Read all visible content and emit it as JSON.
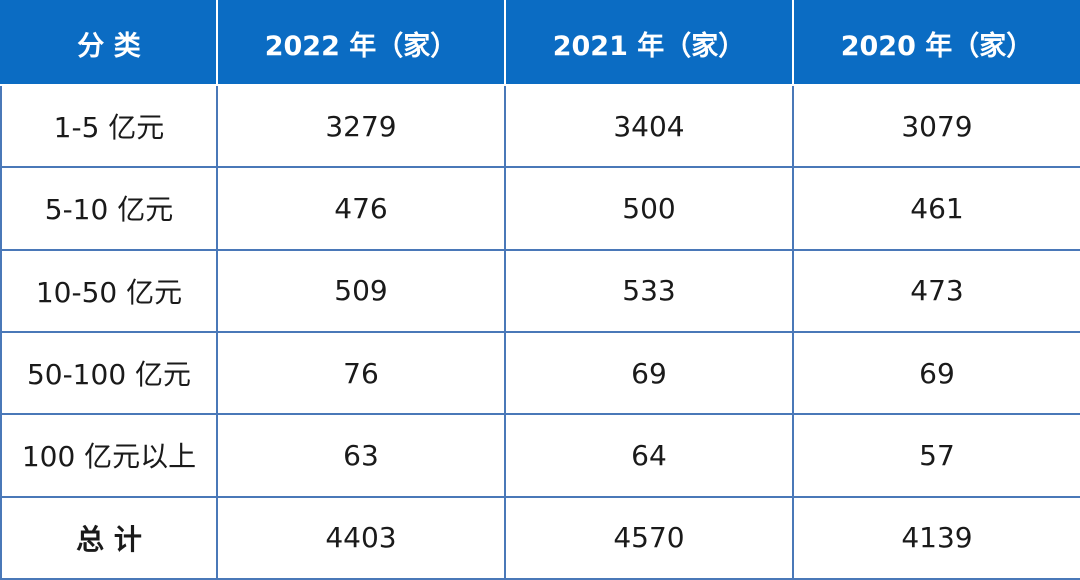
{
  "table": {
    "headers": [
      "分 类",
      "2022 年（家）",
      "2021 年（家）",
      "2020 年（家）"
    ],
    "rows": [
      [
        "1-5 亿元",
        "3279",
        "3404",
        "3079"
      ],
      [
        "5-10 亿元",
        "476",
        "500",
        "461"
      ],
      [
        "10-50 亿元",
        "509",
        "533",
        "473"
      ],
      [
        "50-100 亿元",
        "76",
        "69",
        "69"
      ],
      [
        "100 亿元以上",
        "63",
        "64",
        "57"
      ],
      [
        "总 计",
        "4403",
        "4570",
        "4139"
      ]
    ]
  },
  "colors": {
    "header_bg": "#0b6cc3",
    "header_text": "#ffffff",
    "grid_line": "#4a78b8",
    "cell_text": "#1a1a1a"
  }
}
